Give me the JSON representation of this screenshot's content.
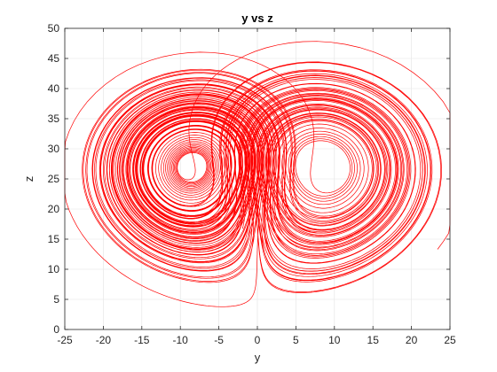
{
  "chart_data": {
    "type": "line",
    "title": "y vs z",
    "xlabel": "y",
    "ylabel": "z",
    "xlim": [
      -25,
      25
    ],
    "ylim": [
      0,
      50
    ],
    "xticks": [
      "-25",
      "-20",
      "-15",
      "-10",
      "-5",
      "0",
      "5",
      "10",
      "15",
      "20",
      "25"
    ],
    "yticks": [
      "0",
      "5",
      "10",
      "15",
      "20",
      "25",
      "30",
      "35",
      "40",
      "45",
      "50"
    ],
    "grid": true,
    "line_color": "#ff0000",
    "series": [
      {
        "description_values": "Lorenz attractor trajectory projected onto the y-z plane; two lobes centered near y=-8.5, z=27 and y=8.5, z=27",
        "lobes": [
          {
            "center": [
              -8.5,
              27
            ],
            "y_range": [
              -24.5,
              -2
            ],
            "z_range": [
              5.5,
              44
            ]
          },
          {
            "center": [
              8.5,
              27
            ],
            "y_range": [
              1.5,
              24.5
            ],
            "z_range": [
              5,
              46
            ]
          }
        ]
      }
    ]
  }
}
